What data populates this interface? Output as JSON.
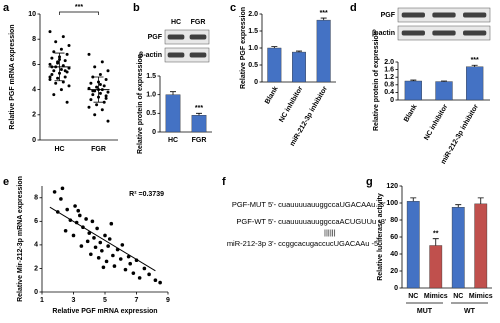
{
  "panels": [
    "a",
    "b",
    "c",
    "d",
    "e",
    "f",
    "g"
  ],
  "chart_data": [
    {
      "type": "strip",
      "ylabel": "Relative PGF mRNA expression",
      "categories": [
        "HC",
        "FGR"
      ],
      "series": [
        {
          "values": [
            8.6,
            8.2,
            7.8,
            7.5,
            7.2,
            7.0,
            6.8,
            6.6,
            6.5,
            6.3,
            6.2,
            6.0,
            5.9,
            5.8,
            5.7,
            5.6,
            5.5,
            5.4,
            5.3,
            5.2,
            5.0,
            4.9,
            4.8,
            4.6,
            4.5,
            4.3,
            4.0,
            3.6,
            3.0,
            6.4,
            5.8,
            5.5,
            6.1,
            5.0
          ],
          "mean": 5.8,
          "sd": 1.1
        },
        {
          "values": [
            6.8,
            6.2,
            5.8,
            5.5,
            5.2,
            5.0,
            4.8,
            4.6,
            4.5,
            4.3,
            4.2,
            4.1,
            4.0,
            3.9,
            3.8,
            3.7,
            3.6,
            3.5,
            3.4,
            3.2,
            3.0,
            2.8,
            2.6,
            2.4,
            2.0,
            1.5,
            4.4,
            3.9,
            3.3,
            4.0
          ],
          "mean": 4.0,
          "sd": 1.0
        }
      ],
      "ylim": [
        0,
        10
      ],
      "yticks": [
        0,
        2,
        4,
        6,
        8,
        10
      ],
      "significance": "***"
    },
    {
      "type": "bar",
      "blot": {
        "lanes": [
          "HC",
          "FGR"
        ],
        "rows": [
          "PGF",
          "β-actin"
        ]
      },
      "ylabel": "Relative protein of expression",
      "categories": [
        "HC",
        "FGR"
      ],
      "values": [
        1.0,
        0.45
      ],
      "errors": [
        0.08,
        0.05
      ],
      "color": "#4472c4",
      "ylim": [
        0,
        1.5
      ],
      "yticks": [
        0,
        0.5,
        {
          "value": 1,
          "label": "1.0"
        },
        1.5
      ],
      "significance": [
        null,
        "***"
      ]
    },
    {
      "type": "bar",
      "ylabel": "Relative PGF expression",
      "categories": [
        "Blank",
        "NC inhibitor",
        "miR-212-3p inhibitor"
      ],
      "values": [
        1.0,
        0.88,
        1.82
      ],
      "errors": [
        0.04,
        0.03,
        0.06
      ],
      "color": "#4472c4",
      "ylim": [
        0,
        2
      ],
      "yticks": [
        0,
        0.5,
        {
          "value": 1,
          "label": "1.0"
        },
        1.5,
        {
          "value": 2,
          "label": "2.0"
        }
      ],
      "significance": [
        null,
        null,
        "***"
      ]
    },
    {
      "type": "bar",
      "blot": {
        "rows": [
          "PGF",
          "β-actin"
        ]
      },
      "ylabel": "Relative protein of expression",
      "categories": [
        "Blank",
        "NC inhibitor",
        "miR-212-3p inhibitor"
      ],
      "values": [
        1.0,
        0.97,
        1.75
      ],
      "errors": [
        0.05,
        0.03,
        0.08
      ],
      "color": "#4472c4",
      "ylim": [
        0,
        2
      ],
      "yticks": [
        0,
        0.4,
        0.8,
        1.2,
        1.6,
        {
          "value": 2,
          "label": "2.0"
        }
      ],
      "significance": [
        null,
        null,
        "***"
      ]
    },
    {
      "type": "scatter",
      "xlabel": "Relative PGF mRNA expression",
      "ylabel": "Relative Mir-212-3p mRNA expression",
      "x": [
        1.8,
        2.0,
        2.2,
        2.5,
        2.6,
        2.8,
        3.0,
        3.1,
        3.2,
        3.4,
        3.5,
        3.6,
        3.8,
        3.9,
        4.0,
        4.1,
        4.2,
        4.3,
        4.4,
        4.5,
        4.6,
        4.7,
        4.8,
        5.0,
        5.1,
        5.2,
        5.3,
        5.5,
        5.6,
        5.8,
        6.0,
        6.1,
        6.3,
        6.5,
        6.6,
        6.8,
        7.0,
        7.2,
        7.5,
        7.8,
        8.2,
        8.5,
        2.3,
        3.3,
        4.9,
        5.4
      ],
      "y": [
        8.5,
        6.8,
        7.9,
        5.2,
        7.0,
        6.1,
        4.8,
        7.3,
        5.9,
        6.5,
        3.9,
        5.5,
        6.2,
        4.3,
        5.0,
        3.2,
        6.0,
        4.6,
        3.8,
        5.4,
        2.9,
        4.2,
        3.5,
        4.8,
        2.6,
        3.9,
        4.5,
        3.1,
        2.2,
        3.6,
        2.8,
        4.0,
        1.9,
        3.0,
        2.4,
        1.6,
        2.7,
        1.2,
        2.0,
        1.5,
        1.0,
        0.8,
        8.8,
        6.9,
        2.1,
        5.8
      ],
      "fit": {
        "x": [
          1.5,
          8.2
        ],
        "y": [
          7.2,
          1.8
        ]
      },
      "xlim": [
        1,
        9
      ],
      "xticks": [
        1,
        3,
        5,
        7,
        9
      ],
      "ylim": [
        0,
        9
      ],
      "yticks": [
        0,
        2,
        4,
        6,
        8
      ],
      "annotation": "R² =0.3739"
    },
    {
      "type": "bar",
      "ylabel": "Relative luciferase activity",
      "categories": [
        "NC",
        "Mimics",
        "NC",
        "Mimics"
      ],
      "groups": [
        "MUT",
        "WT"
      ],
      "values": [
        102,
        50,
        95,
        99
      ],
      "errors": [
        4,
        8,
        3,
        7
      ],
      "colors": [
        "#4472c4",
        "#c0504d",
        "#4472c4",
        "#c0504d"
      ],
      "ylim": [
        0,
        120
      ],
      "yticks": [
        0,
        20,
        40,
        60,
        80,
        100,
        120
      ],
      "significance": [
        null,
        "**",
        null,
        null
      ]
    }
  ],
  "sequence_diagram": {
    "rows": [
      {
        "name": "PGF-MUT",
        "sequence": "5'- cuauuuuauuggccaUGACAAu -3'"
      },
      {
        "name": "PGF-WT",
        "sequence": "5'- cuauuuuauuggccaACUGUUu -3'"
      },
      {
        "name": "miR-212-3p",
        "sequence": "3'- ccggcacugaccucUGACAAu -5'"
      }
    ],
    "pairing": "||||||"
  }
}
